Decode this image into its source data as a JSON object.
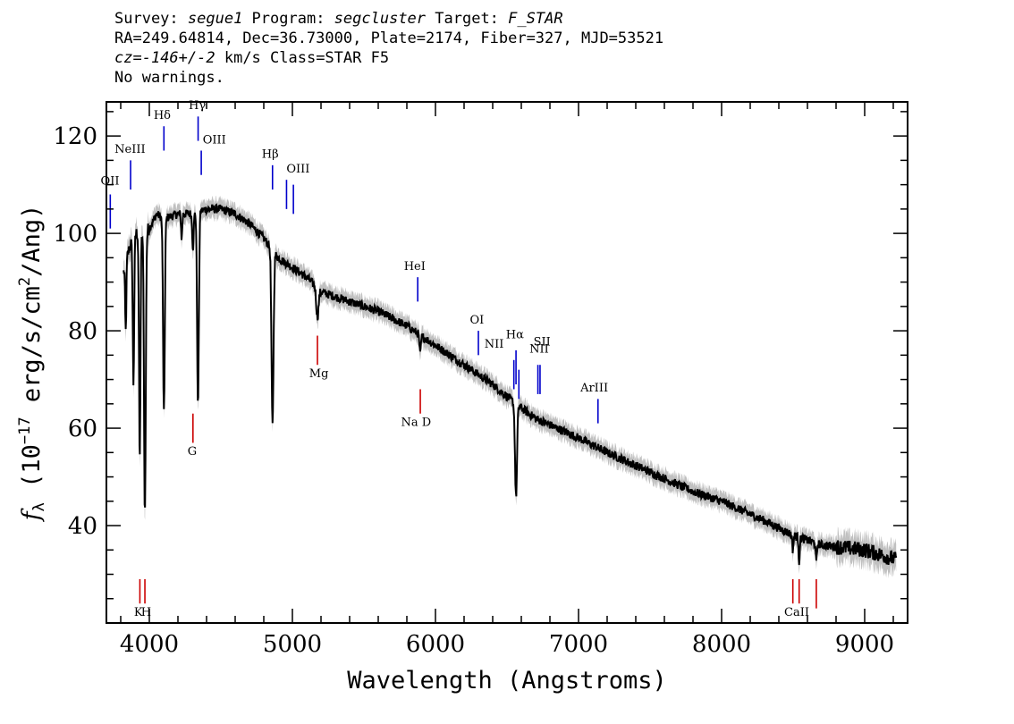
{
  "header": {
    "survey_label": "Survey: ",
    "survey": "segue1",
    "program_label": " Program: ",
    "program": "segcluster",
    "target_label": " Target: ",
    "target": "F_STAR",
    "line2": "RA=249.64814, Dec=36.73000, Plate=2174, Fiber=327, MJD=53521",
    "cz_label": "cz=",
    "cz_value": "-146+/-2",
    "cz_rest": " km/s Class=STAR F5",
    "line4": "No warnings."
  },
  "colors": {
    "flux": "#000000",
    "error_band": "#c0c0c0",
    "emission": "#0000cc",
    "absorption": "#cc0000"
  },
  "chart_data": {
    "type": "line",
    "xlabel": "Wavelength (Angstroms)",
    "ylabel_parts": {
      "f": "f",
      "sub": "λ",
      "pre": " (10",
      "exp1": "−17",
      "mid": " erg/s/cm",
      "exp2": "2",
      "post": "/Ang)"
    },
    "xlim": [
      3700,
      9300
    ],
    "ylim": [
      20,
      127
    ],
    "xticks": [
      4000,
      5000,
      6000,
      7000,
      8000,
      9000
    ],
    "xtick_labels": [
      "4000",
      "5000",
      "6000",
      "7000",
      "8000",
      "9000"
    ],
    "yticks": [
      40,
      60,
      80,
      100,
      120
    ],
    "ytick_labels": [
      "40",
      "60",
      "80",
      "100",
      "120"
    ],
    "series": [
      {
        "continuum": [
          [
            3820,
            92
          ],
          [
            3860,
            97
          ],
          [
            3900,
            100
          ],
          [
            3950,
            100
          ],
          [
            4000,
            101
          ],
          [
            4050,
            104
          ],
          [
            4100,
            103
          ],
          [
            4200,
            104
          ],
          [
            4300,
            104
          ],
          [
            4400,
            105
          ],
          [
            4500,
            105
          ],
          [
            4600,
            104
          ],
          [
            4700,
            102
          ],
          [
            4800,
            99
          ],
          [
            4900,
            95
          ],
          [
            5000,
            93
          ],
          [
            5100,
            91
          ],
          [
            5200,
            88
          ],
          [
            5400,
            86
          ],
          [
            5600,
            84
          ],
          [
            5800,
            81
          ],
          [
            6000,
            77
          ],
          [
            6200,
            73
          ],
          [
            6400,
            69
          ],
          [
            6560,
            65
          ],
          [
            6700,
            62
          ],
          [
            7000,
            58
          ],
          [
            7200,
            55
          ],
          [
            7500,
            51
          ],
          [
            7800,
            47
          ],
          [
            8000,
            45
          ],
          [
            8300,
            41
          ],
          [
            8500,
            38
          ],
          [
            8700,
            36
          ],
          [
            9000,
            35
          ],
          [
            9220,
            33
          ]
        ],
        "absorption_features": [
          {
            "center": 3835,
            "depth": 14,
            "width": 4
          },
          {
            "center": 3889,
            "depth": 30,
            "width": 5
          },
          {
            "center": 3933,
            "depth": 47,
            "width": 5
          },
          {
            "center": 3969,
            "depth": 58,
            "width": 6
          },
          {
            "center": 4102,
            "depth": 40,
            "width": 6
          },
          {
            "center": 4226,
            "depth": 5,
            "width": 4
          },
          {
            "center": 4305,
            "depth": 7,
            "width": 5
          },
          {
            "center": 4340,
            "depth": 40,
            "width": 6
          },
          {
            "center": 4861,
            "depth": 36,
            "width": 7
          },
          {
            "center": 5175,
            "depth": 6,
            "width": 8
          },
          {
            "center": 5893,
            "depth": 4,
            "width": 5
          },
          {
            "center": 6563,
            "depth": 19,
            "width": 7
          },
          {
            "center": 8498,
            "depth": 3,
            "width": 4
          },
          {
            "center": 8542,
            "depth": 5,
            "width": 4
          },
          {
            "center": 8662,
            "depth": 4,
            "width": 4
          }
        ]
      }
    ],
    "line_markers": [
      {
        "label": "OII",
        "wave": 3727,
        "kind": "emission",
        "y_top": 108,
        "y_bottom": 101
      },
      {
        "label": "NeIII",
        "wave": 3869,
        "kind": "emission",
        "y_top": 115,
        "y_bottom": 109
      },
      {
        "label": "Hδ",
        "wave": 4102,
        "kind": "emission",
        "y_top": 122,
        "y_bottom": 117
      },
      {
        "label": "Hγ",
        "wave": 4341,
        "kind": "emission",
        "y_top": 124,
        "y_bottom": 119
      },
      {
        "label": "OIII",
        "wave": 4363,
        "kind": "emission",
        "y_top": 117,
        "y_bottom": 112
      },
      {
        "label": "Hβ",
        "wave": 4861,
        "kind": "emission",
        "y_top": 114,
        "y_bottom": 109
      },
      {
        "label": "OIII",
        "wave": 4959,
        "kind": "emission",
        "y_top": 111,
        "y_bottom": 105
      },
      {
        "label": "OIII",
        "wave": 5007,
        "kind": "emission",
        "y_top": 110,
        "y_bottom": 104
      },
      {
        "label": "HeI",
        "wave": 5876,
        "kind": "emission",
        "y_top": 91,
        "y_bottom": 86
      },
      {
        "label": "OI",
        "wave": 6300,
        "kind": "emission",
        "y_top": 80,
        "y_bottom": 75
      },
      {
        "label": "NII",
        "wave": 6548,
        "kind": "emission",
        "y_top": 74,
        "y_bottom": 68
      },
      {
        "label": "Hα",
        "wave": 6563,
        "kind": "emission",
        "y_top": 76,
        "y_bottom": 69
      },
      {
        "label": "NII",
        "wave": 6583,
        "kind": "emission",
        "y_top": 72,
        "y_bottom": 66
      },
      {
        "label": "SII",
        "wave": 6716,
        "kind": "emission",
        "y_top": 73,
        "y_bottom": 67
      },
      {
        "label": "SII",
        "wave": 6731,
        "kind": "emission",
        "y_top": 73,
        "y_bottom": 67
      },
      {
        "label": "ArIII",
        "wave": 7136,
        "kind": "emission",
        "y_top": 66,
        "y_bottom": 61
      },
      {
        "label": "K",
        "wave": 3934,
        "kind": "absorption",
        "y_top": 29,
        "y_bottom": 24
      },
      {
        "label": "H",
        "wave": 3969,
        "kind": "absorption",
        "y_top": 29,
        "y_bottom": 24
      },
      {
        "label": "G",
        "wave": 4305,
        "kind": "absorption",
        "y_top": 63,
        "y_bottom": 57
      },
      {
        "label": "Mg",
        "wave": 5175,
        "kind": "absorption",
        "y_top": 79,
        "y_bottom": 73
      },
      {
        "label": "Na D",
        "wave": 5894,
        "kind": "absorption",
        "y_top": 68,
        "y_bottom": 63
      },
      {
        "label": "CaII",
        "wave": 8498,
        "kind": "absorption",
        "y_top": 29,
        "y_bottom": 24
      },
      {
        "label": "CaII",
        "wave": 8542,
        "kind": "absorption",
        "y_top": 29,
        "y_bottom": 24
      },
      {
        "label": "CaII",
        "wave": 8662,
        "kind": "absorption",
        "y_top": 29,
        "y_bottom": 23
      }
    ],
    "marker_labels": [
      {
        "text": "OII",
        "wave": 3725,
        "y": 110,
        "align": "middle"
      },
      {
        "text": "NeIII",
        "wave": 3865,
        "y": 116.5,
        "align": "middle"
      },
      {
        "text": "Hδ",
        "wave": 4090,
        "y": 123.5,
        "align": "middle"
      },
      {
        "text": "Hγ",
        "wave": 4335,
        "y": 125.5,
        "align": "middle"
      },
      {
        "text": "OIII",
        "wave": 4455,
        "y": 118.5,
        "align": "middle"
      },
      {
        "text": "Hβ",
        "wave": 4845,
        "y": 115.5,
        "align": "middle"
      },
      {
        "text": "OIII",
        "wave": 5040,
        "y": 112.5,
        "align": "middle"
      },
      {
        "text": "HeI",
        "wave": 5855,
        "y": 92.5,
        "align": "middle"
      },
      {
        "text": "OI",
        "wave": 6290,
        "y": 81.5,
        "align": "middle"
      },
      {
        "text": "NII",
        "wave": 6410,
        "y": 76.5,
        "align": "middle"
      },
      {
        "text": "Hα",
        "wave": 6555,
        "y": 78.5,
        "align": "middle"
      },
      {
        "text": "NII",
        "wave": 6725,
        "y": 75.5,
        "align": "middle"
      },
      {
        "text": "SII",
        "wave": 6745,
        "y": 77,
        "align": "middle"
      },
      {
        "text": "ArIII",
        "wave": 7110,
        "y": 67.5,
        "align": "middle"
      },
      {
        "text": "G",
        "wave": 4300,
        "y": 54.5,
        "align": "middle"
      },
      {
        "text": "Mg",
        "wave": 5185,
        "y": 70.5,
        "align": "middle"
      },
      {
        "text": "Na D",
        "wave": 5865,
        "y": 60.5,
        "align": "middle"
      },
      {
        "text": "K",
        "wave": 3923,
        "y": 21.5,
        "align": "middle"
      },
      {
        "text": "H",
        "wave": 3978,
        "y": 21.5,
        "align": "middle"
      },
      {
        "text": "CaII",
        "wave": 8525,
        "y": 21.5,
        "align": "middle"
      }
    ]
  }
}
